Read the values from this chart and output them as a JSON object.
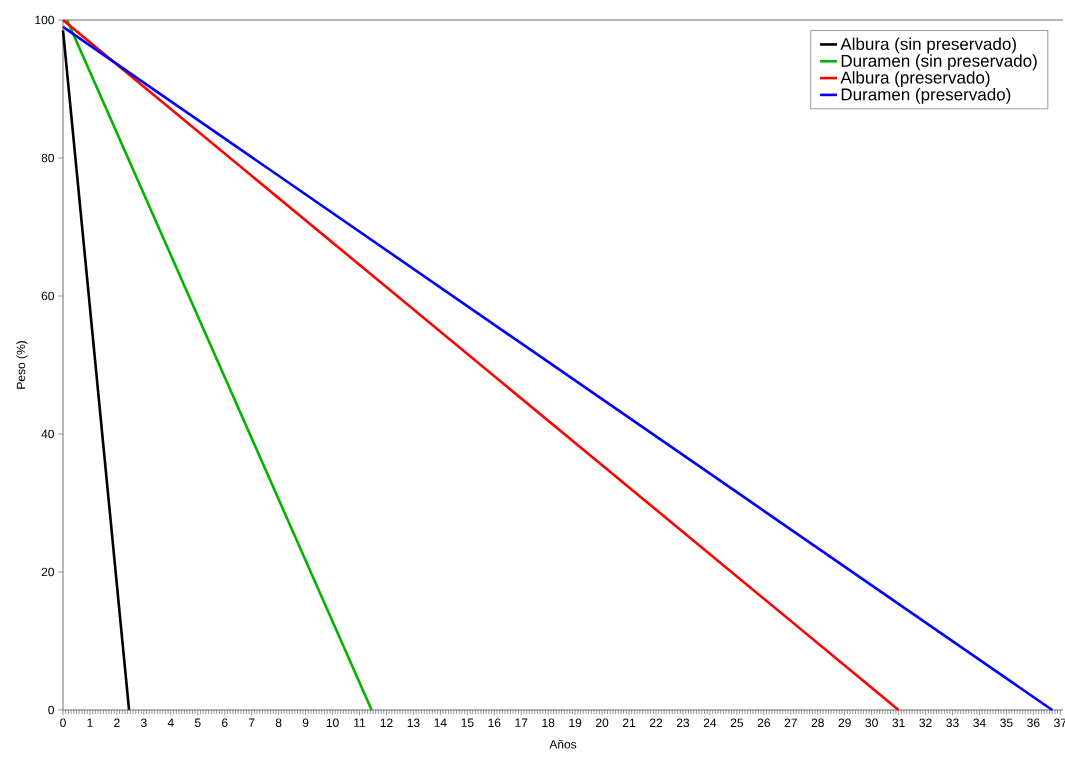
{
  "chart_data": {
    "type": "line",
    "xlabel": "Años",
    "ylabel": "Peso (%)",
    "xlim": [
      0,
      37.1
    ],
    "ylim": [
      0,
      100
    ],
    "xticks": [
      0,
      1,
      2,
      3,
      4,
      5,
      6,
      7,
      8,
      9,
      10,
      11,
      12,
      13,
      14,
      15,
      16,
      17,
      18,
      19,
      20,
      21,
      22,
      23,
      24,
      25,
      26,
      27,
      28,
      29,
      30,
      31,
      32,
      33,
      34,
      35,
      36,
      37
    ],
    "yticks": [
      0,
      20,
      40,
      60,
      80,
      100
    ],
    "grid": false,
    "legend": "top right",
    "marker": "none",
    "line_style": "solid",
    "series": [
      {
        "name": "Albura (sin preservado)",
        "color": "#000000",
        "x": [
          0,
          2.45
        ],
        "values": [
          98.5,
          0
        ]
      },
      {
        "name": "Duramen (sin preservado)",
        "color": "#00b400",
        "x": [
          0.15,
          11.45
        ],
        "values": [
          100,
          0
        ]
      },
      {
        "name": "Albura (preservado)",
        "color": "#ff0000",
        "x": [
          0,
          31
        ],
        "values": [
          100,
          0
        ]
      },
      {
        "name": "Duramen (preservado)",
        "color": "#0000ff",
        "x": [
          0,
          36.7
        ],
        "values": [
          99,
          0
        ]
      }
    ]
  }
}
